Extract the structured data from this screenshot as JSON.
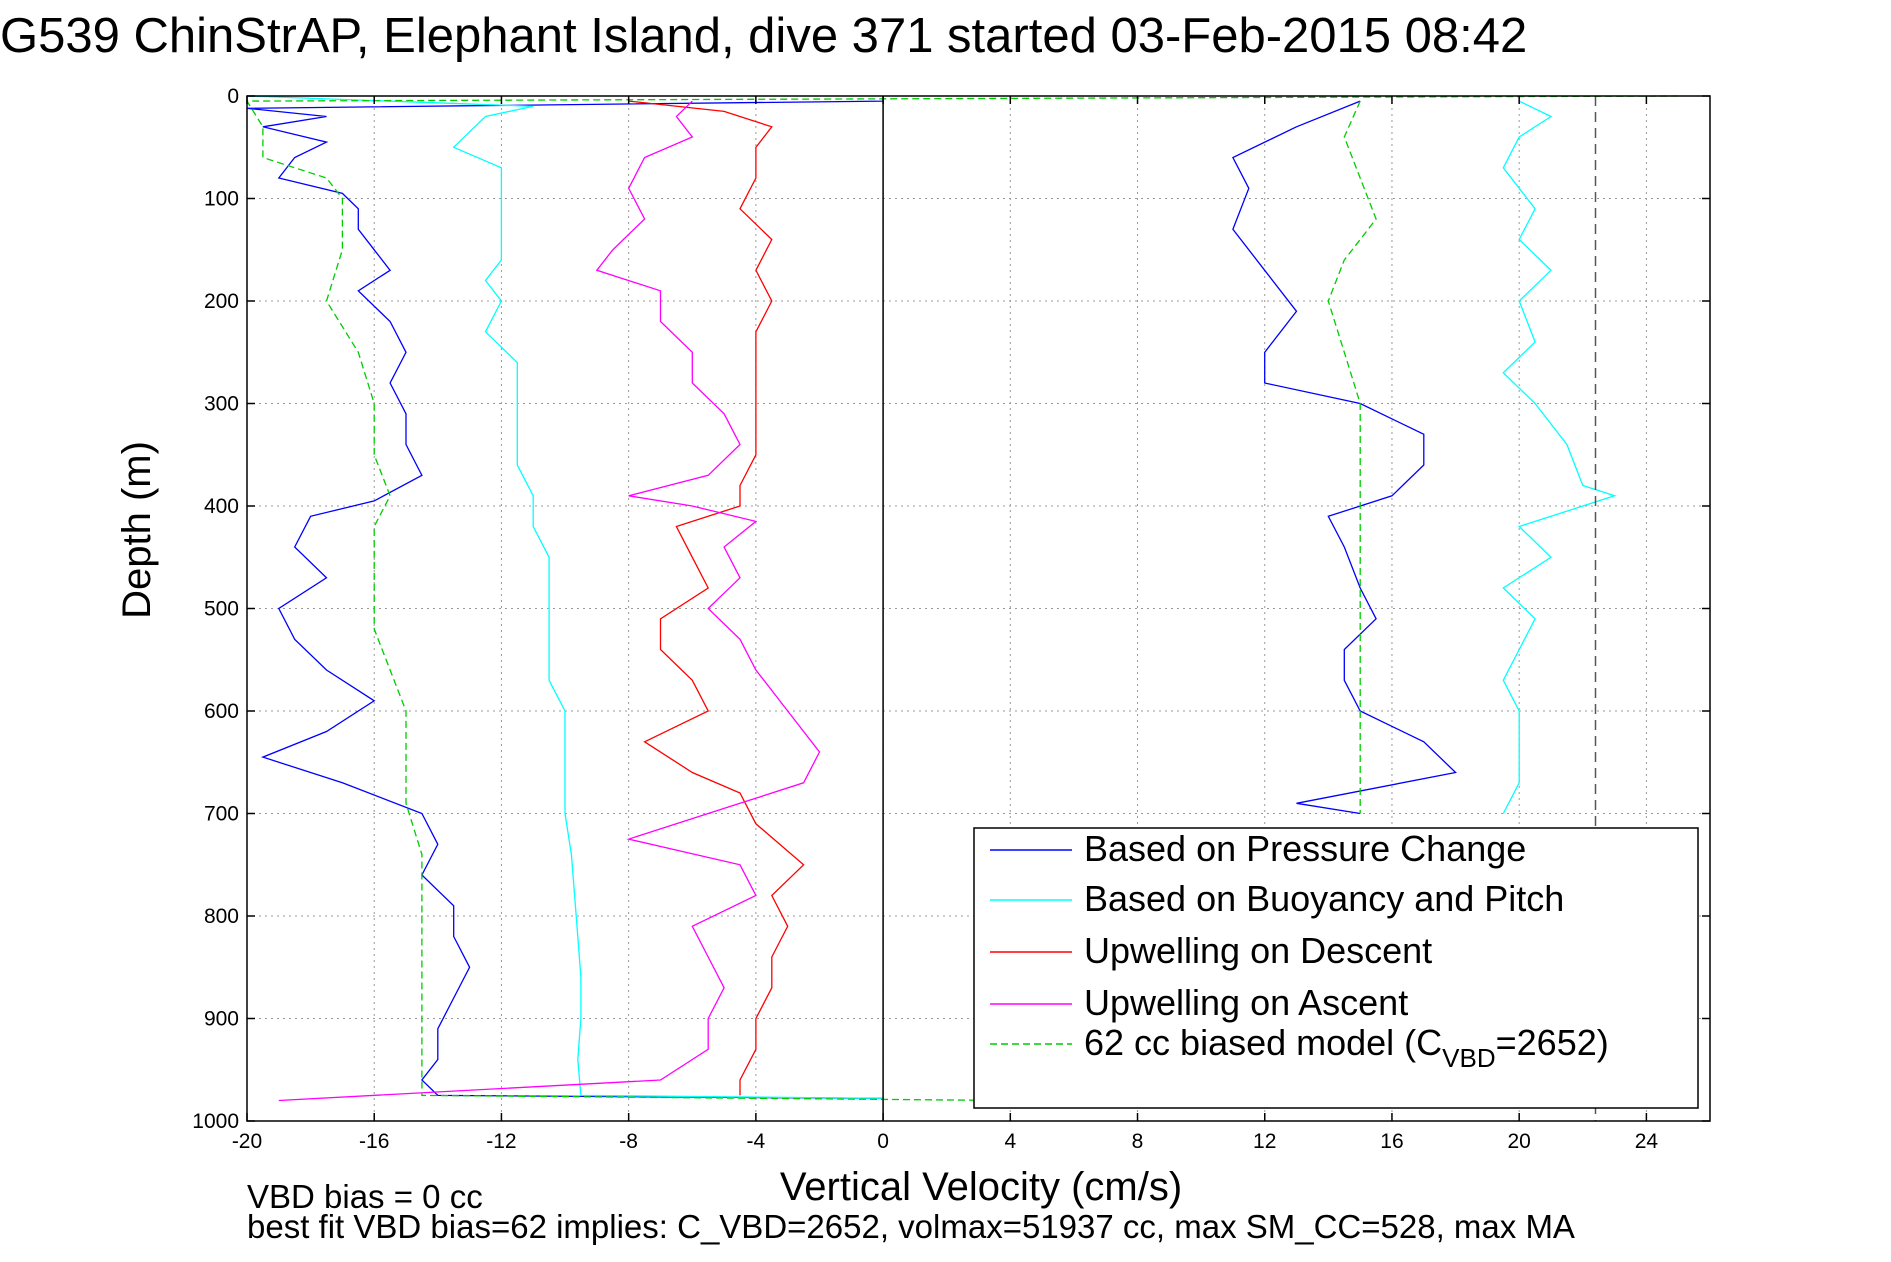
{
  "chart_data": {
    "type": "line",
    "title": "G539 ChinStrAP, Elephant Island, dive 371 started 03-Feb-2015 08:42",
    "xlabel": "Vertical Velocity (cm/s)",
    "ylabel": "Depth (m)",
    "xlim": [
      -20,
      26
    ],
    "ylim": [
      0,
      1000
    ],
    "y_reversed": true,
    "grid": true,
    "xticks": [
      -20,
      -16,
      -12,
      -8,
      -4,
      0,
      4,
      8,
      12,
      16,
      20,
      24
    ],
    "yticks": [
      0,
      100,
      200,
      300,
      400,
      500,
      600,
      700,
      800,
      900,
      1000
    ],
    "vertical_reference_lines": [
      0,
      22.4
    ],
    "legend_position": "lower-right",
    "legend": [
      {
        "label": "Based on Pressure Change",
        "color": "#0000ff",
        "dash": false
      },
      {
        "label": "Based on Buoyancy and Pitch",
        "color": "#00ffff",
        "dash": false
      },
      {
        "label": "Upwelling on Descent",
        "color": "#ff0000",
        "dash": false
      },
      {
        "label": "Upwelling on Ascent",
        "color": "#ff00ff",
        "dash": false
      },
      {
        "label_main": "62 cc biased model (C",
        "label_sub": "VBD",
        "label_tail": "=2652)",
        "color": "#00cc00",
        "dash": true
      }
    ],
    "series": [
      {
        "name": "Based on Pressure Change",
        "color": "#0000ff",
        "dash": false,
        "points": [
          [
            0,
            0
          ],
          [
            0,
            5
          ],
          [
            -20,
            12
          ],
          [
            -17.5,
            20
          ],
          [
            -19.5,
            30
          ],
          [
            -17.5,
            45
          ],
          [
            -18.5,
            60
          ],
          [
            -19,
            80
          ],
          [
            -17,
            95
          ],
          [
            -16.5,
            110
          ],
          [
            -16.5,
            130
          ],
          [
            -16,
            150
          ],
          [
            -15.5,
            170
          ],
          [
            -16.5,
            190
          ],
          [
            -15.5,
            220
          ],
          [
            -15,
            250
          ],
          [
            -15.5,
            280
          ],
          [
            -15,
            310
          ],
          [
            -15,
            340
          ],
          [
            -14.5,
            370
          ],
          [
            -16,
            395
          ],
          [
            -18,
            410
          ],
          [
            -18.5,
            440
          ],
          [
            -17.5,
            470
          ],
          [
            -19,
            500
          ],
          [
            -18.5,
            530
          ],
          [
            -17.5,
            560
          ],
          [
            -16,
            590
          ],
          [
            -17.5,
            620
          ],
          [
            -19.5,
            645
          ],
          [
            -17,
            670
          ],
          [
            -14.5,
            700
          ],
          [
            -14,
            730
          ],
          [
            -14.5,
            760
          ],
          [
            -13.5,
            790
          ],
          [
            -13.5,
            820
          ],
          [
            -13,
            850
          ],
          [
            -13.5,
            880
          ],
          [
            -14,
            910
          ],
          [
            -14,
            940
          ],
          [
            -14.5,
            960
          ],
          [
            -14,
            975
          ],
          [
            0,
            978
          ]
        ]
      },
      {
        "name": "Based on Buoyancy and Pitch",
        "color": "#00ffff",
        "dash": false,
        "points": [
          [
            -20,
            0
          ],
          [
            -11,
            10
          ],
          [
            -12.5,
            20
          ],
          [
            -13,
            35
          ],
          [
            -13.5,
            50
          ],
          [
            -12,
            70
          ],
          [
            -12,
            100
          ],
          [
            -12,
            130
          ],
          [
            -12,
            160
          ],
          [
            -12.5,
            180
          ],
          [
            -12,
            200
          ],
          [
            -12.5,
            230
          ],
          [
            -11.5,
            260
          ],
          [
            -11.5,
            300
          ],
          [
            -11.5,
            330
          ],
          [
            -11.5,
            360
          ],
          [
            -11,
            390
          ],
          [
            -11,
            420
          ],
          [
            -10.5,
            450
          ],
          [
            -10.5,
            480
          ],
          [
            -10.5,
            510
          ],
          [
            -10.5,
            540
          ],
          [
            -10.5,
            570
          ],
          [
            -10,
            600
          ],
          [
            -10,
            630
          ],
          [
            -10,
            660
          ],
          [
            -10,
            700
          ],
          [
            -9.8,
            740
          ],
          [
            -9.7,
            780
          ],
          [
            -9.6,
            820
          ],
          [
            -9.5,
            860
          ],
          [
            -9.5,
            900
          ],
          [
            -9.6,
            940
          ],
          [
            -9.5,
            975
          ],
          [
            0,
            978
          ]
        ]
      },
      {
        "name": "Upwelling on Descent",
        "color": "#ff0000",
        "dash": false,
        "points": [
          [
            -8,
            5
          ],
          [
            -5,
            15
          ],
          [
            -3.5,
            30
          ],
          [
            -4,
            50
          ],
          [
            -4,
            80
          ],
          [
            -4.5,
            110
          ],
          [
            -3.5,
            140
          ],
          [
            -4,
            170
          ],
          [
            -3.5,
            200
          ],
          [
            -4,
            230
          ],
          [
            -4,
            260
          ],
          [
            -4,
            290
          ],
          [
            -4,
            320
          ],
          [
            -4,
            350
          ],
          [
            -4.5,
            380
          ],
          [
            -4.5,
            400
          ],
          [
            -6.5,
            420
          ],
          [
            -6,
            450
          ],
          [
            -5.5,
            480
          ],
          [
            -7,
            510
          ],
          [
            -7,
            540
          ],
          [
            -6,
            570
          ],
          [
            -5.5,
            600
          ],
          [
            -7.5,
            630
          ],
          [
            -6,
            660
          ],
          [
            -4.5,
            680
          ],
          [
            -4,
            710
          ],
          [
            -2.5,
            750
          ],
          [
            -3.5,
            780
          ],
          [
            -3,
            810
          ],
          [
            -3.5,
            840
          ],
          [
            -3.5,
            870
          ],
          [
            -4,
            900
          ],
          [
            -4,
            930
          ],
          [
            -4.5,
            960
          ],
          [
            -4.5,
            975
          ]
        ]
      },
      {
        "name": "Upwelling on Ascent",
        "color": "#ff00ff",
        "dash": false,
        "points": [
          [
            -6,
            5
          ],
          [
            -6.5,
            20
          ],
          [
            -6,
            40
          ],
          [
            -7.5,
            60
          ],
          [
            -8,
            90
          ],
          [
            -7.5,
            120
          ],
          [
            -8.5,
            150
          ],
          [
            -9,
            170
          ],
          [
            -7,
            190
          ],
          [
            -7,
            220
          ],
          [
            -6,
            250
          ],
          [
            -6,
            280
          ],
          [
            -5,
            310
          ],
          [
            -4.5,
            340
          ],
          [
            -5.5,
            370
          ],
          [
            -8,
            390
          ],
          [
            -6,
            400
          ],
          [
            -4,
            415
          ],
          [
            -5,
            440
          ],
          [
            -4.5,
            470
          ],
          [
            -5.5,
            500
          ],
          [
            -4.5,
            530
          ],
          [
            -4,
            560
          ],
          [
            -3,
            600
          ],
          [
            -2,
            640
          ],
          [
            -2.5,
            670
          ],
          [
            -4.5,
            690
          ],
          [
            -8,
            725
          ],
          [
            -4.5,
            750
          ],
          [
            -4,
            780
          ],
          [
            -6,
            810
          ],
          [
            -5.5,
            840
          ],
          [
            -5,
            870
          ],
          [
            -5.5,
            900
          ],
          [
            -5.5,
            930
          ],
          [
            -7,
            960
          ],
          [
            -19,
            980
          ]
        ]
      },
      {
        "name": "62 cc biased model (CVBD=2652)",
        "color": "#00cc00",
        "dash": true,
        "points": [
          [
            25,
            0
          ],
          [
            -20,
            5
          ],
          [
            -19.5,
            30
          ],
          [
            -19.5,
            60
          ],
          [
            -17.5,
            80
          ],
          [
            -17,
            100
          ],
          [
            -17,
            150
          ],
          [
            -17.5,
            200
          ],
          [
            -16.5,
            250
          ],
          [
            -16,
            300
          ],
          [
            -16,
            350
          ],
          [
            -15.5,
            390
          ],
          [
            -16,
            420
          ],
          [
            -16,
            470
          ],
          [
            -16,
            520
          ],
          [
            -15.5,
            560
          ],
          [
            -15,
            600
          ],
          [
            -15,
            640
          ],
          [
            -15,
            690
          ],
          [
            -14.5,
            740
          ],
          [
            -14.5,
            800
          ],
          [
            -14.5,
            850
          ],
          [
            -14.5,
            900
          ],
          [
            -14.5,
            950
          ],
          [
            -14.5,
            975
          ],
          [
            4,
            980
          ]
        ]
      },
      {
        "name": "Based on Pressure Change (ascent)",
        "color": "#0000ff",
        "dash": false,
        "points": [
          [
            15,
            5
          ],
          [
            13,
            30
          ],
          [
            11,
            60
          ],
          [
            11.5,
            90
          ],
          [
            11,
            130
          ],
          [
            12,
            170
          ],
          [
            13,
            210
          ],
          [
            12,
            250
          ],
          [
            12,
            280
          ],
          [
            15,
            300
          ],
          [
            17,
            330
          ],
          [
            17,
            360
          ],
          [
            16,
            390
          ],
          [
            14,
            410
          ],
          [
            14.5,
            440
          ],
          [
            15,
            480
          ],
          [
            15.5,
            510
          ],
          [
            14.5,
            540
          ],
          [
            14.5,
            570
          ],
          [
            15,
            600
          ],
          [
            17,
            630
          ],
          [
            18,
            660
          ],
          [
            13,
            690
          ],
          [
            15,
            700
          ]
        ]
      },
      {
        "name": "Based on Buoyancy and Pitch (ascent)",
        "color": "#00ffff",
        "dash": false,
        "points": [
          [
            20,
            5
          ],
          [
            21,
            20
          ],
          [
            20,
            40
          ],
          [
            19.5,
            70
          ],
          [
            20.5,
            110
          ],
          [
            20,
            140
          ],
          [
            21,
            170
          ],
          [
            20,
            200
          ],
          [
            20.5,
            240
          ],
          [
            19.5,
            270
          ],
          [
            20.5,
            300
          ],
          [
            21.5,
            340
          ],
          [
            22,
            380
          ],
          [
            23,
            390
          ],
          [
            20,
            420
          ],
          [
            21,
            450
          ],
          [
            19.5,
            480
          ],
          [
            20.5,
            510
          ],
          [
            20,
            540
          ],
          [
            19.5,
            570
          ],
          [
            20,
            600
          ],
          [
            20,
            640
          ],
          [
            20,
            670
          ],
          [
            19.5,
            700
          ]
        ]
      },
      {
        "name": "62 cc biased model (ascent)",
        "color": "#00cc00",
        "dash": true,
        "points": [
          [
            15,
            5
          ],
          [
            14.5,
            40
          ],
          [
            15,
            80
          ],
          [
            15.5,
            120
          ],
          [
            14.5,
            160
          ],
          [
            14,
            200
          ],
          [
            14.5,
            250
          ],
          [
            15,
            300
          ],
          [
            15,
            350
          ],
          [
            15,
            400
          ],
          [
            15,
            450
          ],
          [
            15,
            500
          ],
          [
            15,
            550
          ],
          [
            15,
            600
          ],
          [
            15,
            650
          ],
          [
            15,
            700
          ]
        ]
      }
    ]
  },
  "footer": {
    "line1": "VBD bias = 0 cc",
    "line2": "best fit VBD bias=62 implies: C_VBD=2652, volmax=51937 cc, max SM_CC=528, max MA"
  }
}
